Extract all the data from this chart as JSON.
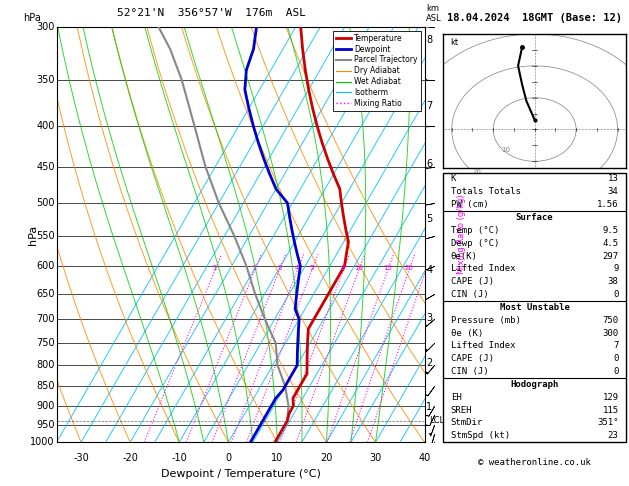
{
  "title_left": "52°21'N  356°57'W  176m  ASL",
  "title_right": "18.04.2024  18GMT (Base: 12)",
  "xlabel": "Dewpoint / Temperature (°C)",
  "ylabel_left": "hPa",
  "x_min": -35,
  "x_max": 40,
  "pressure_levels": [
    300,
    350,
    400,
    450,
    500,
    550,
    600,
    650,
    700,
    750,
    800,
    850,
    900,
    950,
    1000
  ],
  "pressure_ticks": [
    300,
    350,
    400,
    450,
    500,
    550,
    600,
    650,
    700,
    750,
    800,
    850,
    900,
    950,
    1000
  ],
  "km_ticks": [
    1,
    2,
    3,
    4,
    5,
    6,
    7,
    8
  ],
  "km_pressures": [
    902,
    795,
    697,
    607,
    524,
    447,
    377,
    312
  ],
  "lcl_pressure": 940,
  "isotherm_color": "#00bfff",
  "isotherm_temps": [
    -35,
    -30,
    -25,
    -20,
    -15,
    -10,
    -5,
    0,
    5,
    10,
    15,
    20,
    25,
    30,
    35,
    40
  ],
  "dry_adiabat_color": "#ff8c00",
  "dry_adiabat_temps": [
    -40,
    -30,
    -20,
    -10,
    0,
    10,
    20,
    30,
    40,
    50,
    60
  ],
  "wet_adiabat_color": "#00cc00",
  "wet_adiabat_temps": [
    -10,
    -5,
    0,
    5,
    10,
    15,
    20,
    25,
    30
  ],
  "mixing_ratio_color": "#ff00ff",
  "mixing_ratio_values": [
    1,
    2,
    3,
    4,
    5,
    8,
    10,
    15,
    20,
    25
  ],
  "temp_profile_pressure": [
    300,
    320,
    340,
    360,
    380,
    400,
    420,
    440,
    460,
    480,
    500,
    520,
    540,
    560,
    580,
    600,
    620,
    640,
    660,
    680,
    700,
    720,
    740,
    760,
    780,
    800,
    820,
    840,
    860,
    880,
    900,
    920,
    940,
    960,
    980,
    1000
  ],
  "temp_profile_temp": [
    -34,
    -31,
    -28,
    -25,
    -22,
    -19,
    -16,
    -13,
    -10,
    -7,
    -5,
    -3,
    -1,
    1,
    2,
    3,
    3,
    3,
    3,
    3,
    3,
    3,
    4,
    5,
    6,
    7,
    8,
    8,
    8,
    8,
    9,
    9,
    9.5,
    9.5,
    9.5,
    9.5
  ],
  "dewp_profile_pressure": [
    300,
    320,
    340,
    360,
    380,
    400,
    420,
    440,
    460,
    480,
    500,
    520,
    540,
    560,
    580,
    600,
    620,
    640,
    660,
    680,
    700,
    720,
    740,
    760,
    780,
    800,
    820,
    840,
    860,
    880,
    900,
    920,
    940,
    960,
    980,
    1000
  ],
  "dewp_profile_temp": [
    -43,
    -41,
    -40,
    -38,
    -35,
    -32,
    -29,
    -26,
    -23,
    -20,
    -16,
    -14,
    -12,
    -10,
    -8,
    -6,
    -5,
    -4,
    -3,
    -2,
    0,
    1,
    2,
    3,
    4,
    5,
    5,
    5,
    5,
    4.5,
    4.5,
    4.5,
    4.5,
    4.5,
    4.5,
    4.5
  ],
  "parcel_pressure": [
    940,
    900,
    850,
    800,
    750,
    700,
    650,
    600,
    550,
    500,
    450,
    400,
    350,
    320,
    300
  ],
  "parcel_temp": [
    9.5,
    8,
    5,
    1,
    -2,
    -7,
    -12,
    -17,
    -23,
    -30,
    -37,
    -44,
    -52,
    -58,
    -63
  ],
  "temp_color": "#cc0000",
  "dewp_color": "#0000cc",
  "parcel_color": "#888888",
  "legend_items": [
    {
      "label": "Temperature",
      "color": "#cc0000",
      "style": "solid",
      "lw": 2
    },
    {
      "label": "Dewpoint",
      "color": "#0000cc",
      "style": "solid",
      "lw": 2
    },
    {
      "label": "Parcel Trajectory",
      "color": "#888888",
      "style": "solid",
      "lw": 1.5
    },
    {
      "label": "Dry Adiabat",
      "color": "#ff8c00",
      "style": "solid",
      "lw": 0.8
    },
    {
      "label": "Wet Adiabat",
      "color": "#00cc00",
      "style": "solid",
      "lw": 0.8
    },
    {
      "label": "Isotherm",
      "color": "#00bfff",
      "style": "solid",
      "lw": 0.8
    },
    {
      "label": "Mixing Ratio",
      "color": "#ff00ff",
      "style": "dotted",
      "lw": 1.0
    }
  ],
  "skew_factor": 0.65,
  "table_rows": [
    {
      "label": "K",
      "value": "13",
      "header": false,
      "section_top": false
    },
    {
      "label": "Totals Totals",
      "value": "34",
      "header": false,
      "section_top": false
    },
    {
      "label": "PW (cm)",
      "value": "1.56",
      "header": false,
      "section_top": false
    },
    {
      "label": "Surface",
      "value": "",
      "header": true,
      "section_top": true
    },
    {
      "label": "Temp (°C)",
      "value": "9.5",
      "header": false,
      "section_top": false
    },
    {
      "label": "Dewp (°C)",
      "value": "4.5",
      "header": false,
      "section_top": false
    },
    {
      "label": "θe(K)",
      "value": "297",
      "header": false,
      "section_top": false
    },
    {
      "label": "Lifted Index",
      "value": "9",
      "header": false,
      "section_top": false
    },
    {
      "label": "CAPE (J)",
      "value": "38",
      "header": false,
      "section_top": false
    },
    {
      "label": "CIN (J)",
      "value": "0",
      "header": false,
      "section_top": false
    },
    {
      "label": "Most Unstable",
      "value": "",
      "header": true,
      "section_top": true
    },
    {
      "label": "Pressure (mb)",
      "value": "750",
      "header": false,
      "section_top": false
    },
    {
      "label": "θe (K)",
      "value": "300",
      "header": false,
      "section_top": false
    },
    {
      "label": "Lifted Index",
      "value": "7",
      "header": false,
      "section_top": false
    },
    {
      "label": "CAPE (J)",
      "value": "0",
      "header": false,
      "section_top": false
    },
    {
      "label": "CIN (J)",
      "value": "0",
      "header": false,
      "section_top": false
    },
    {
      "label": "Hodograph",
      "value": "",
      "header": true,
      "section_top": true
    },
    {
      "label": "EH",
      "value": "129",
      "header": false,
      "section_top": false
    },
    {
      "label": "SREH",
      "value": "115",
      "header": false,
      "section_top": false
    },
    {
      "label": "StmDir",
      "value": "351°",
      "header": false,
      "section_top": false
    },
    {
      "label": "StmSpd (kt)",
      "value": "23",
      "header": false,
      "section_top": false
    }
  ],
  "copyright": "© weatheronline.co.uk",
  "hodo_u": [
    0,
    -1,
    -2,
    -3,
    -4,
    -3
  ],
  "hodo_v": [
    3,
    6,
    9,
    14,
    20,
    26
  ]
}
